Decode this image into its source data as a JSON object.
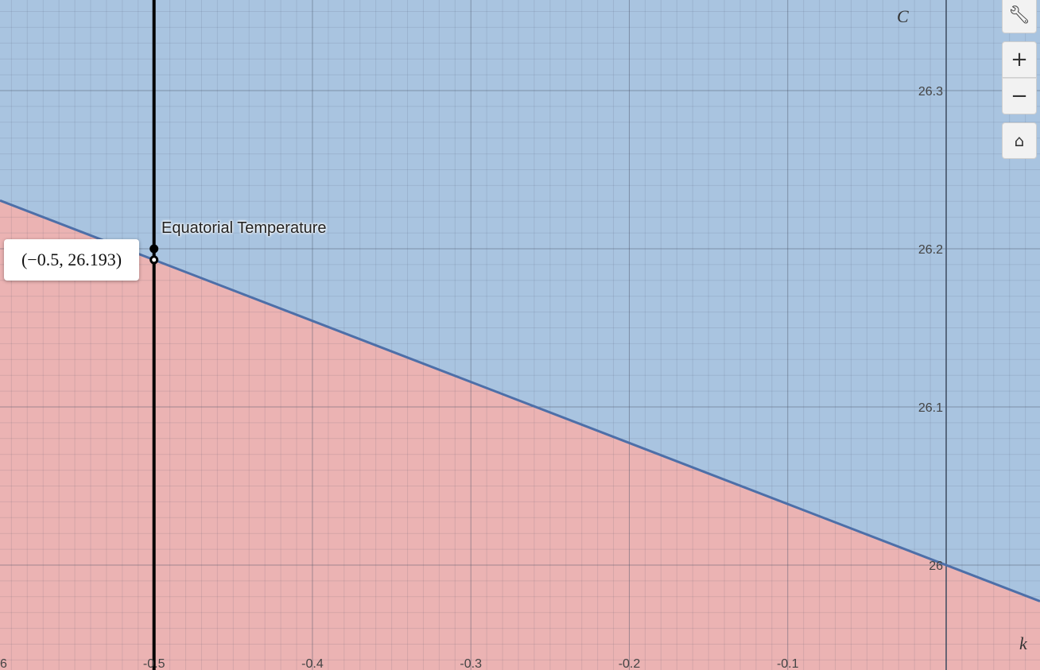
{
  "chart_data": {
    "type": "line",
    "xlabel": "k",
    "ylabel": "C",
    "xlim": [
      -0.6,
      0.0
    ],
    "ylim": [
      25.95,
      26.35
    ],
    "x_ticks": [
      "-0.5",
      "-0.4",
      "-0.3",
      "-0.2",
      "-0.1"
    ],
    "x_tick_partial": "6",
    "y_ticks": [
      "26",
      "26.1",
      "26.2",
      "26.3"
    ],
    "grid": true,
    "line": {
      "x": [
        -0.6,
        -0.5,
        -0.4,
        -0.3,
        -0.2,
        -0.1,
        0.0
      ],
      "y": [
        26.2316,
        26.193,
        26.1544,
        26.1158,
        26.0772,
        26.0386,
        26.0
      ],
      "color": "#4d6fa8"
    },
    "region_above_color": "#a9c4e0",
    "region_below_color": "#ebb3b3",
    "vertical_line": {
      "x": -0.5,
      "color": "#000000"
    },
    "points": [
      {
        "x": -0.5,
        "y": 26.2,
        "label": "Equatorial Temperature"
      },
      {
        "x": -0.5,
        "y": 26.193
      }
    ],
    "coordinate_readout": "(−0.5, 26.193)"
  },
  "toolbar": {
    "settings_icon": "wrench-icon",
    "zoom_in_icon": "plus-icon",
    "zoom_out_icon": "minus-icon",
    "home_icon": "home-icon"
  }
}
